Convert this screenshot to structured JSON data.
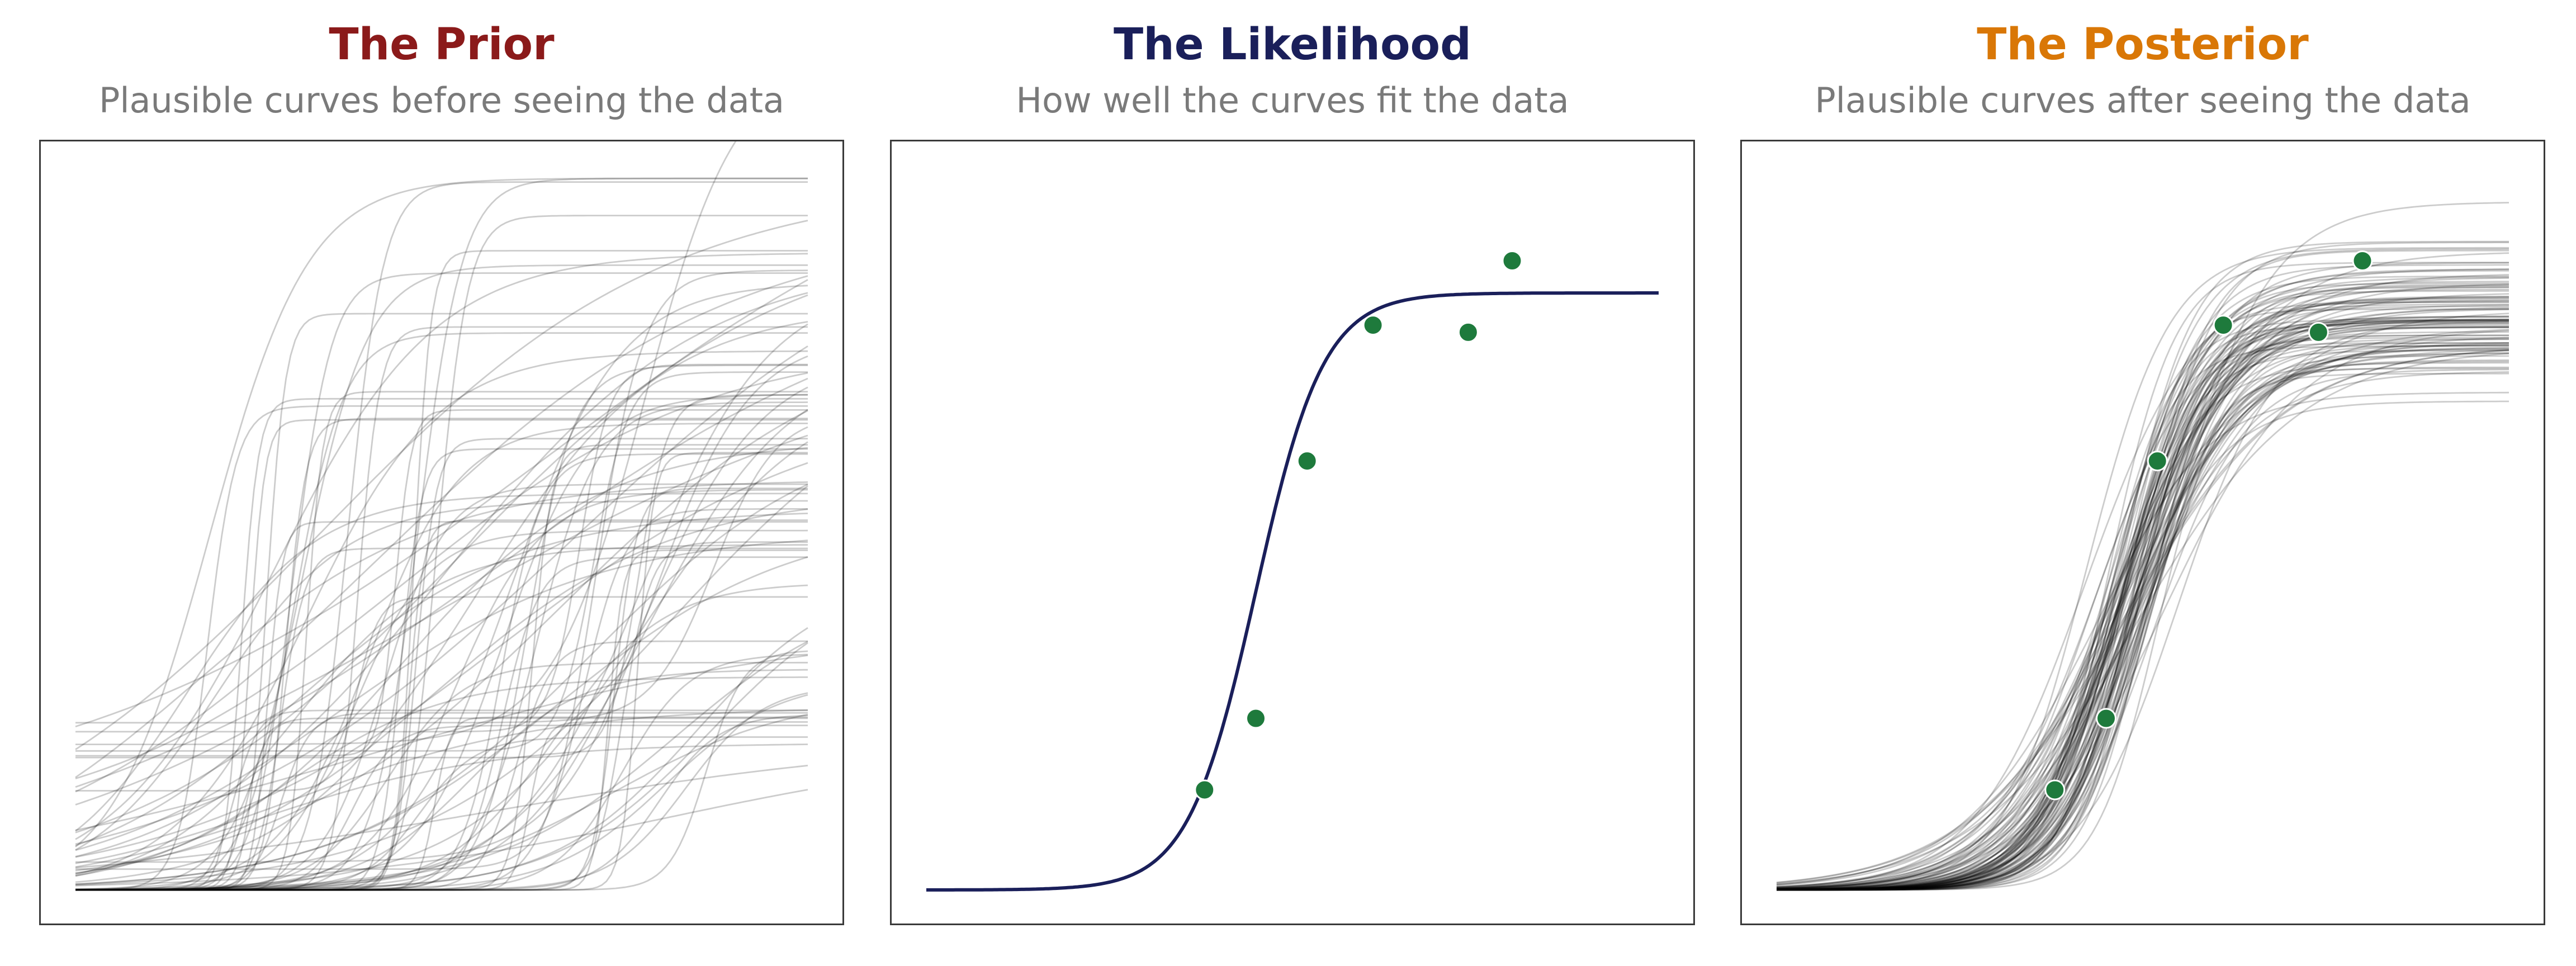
{
  "colors": {
    "prior": "#8b1a1a",
    "likelihood": "#1a1f5a",
    "posterior": "#d97706",
    "subtitle": "#7a7a7a",
    "curve": "#000000",
    "point": "#1e7a3c",
    "point_edge": "#ffffff"
  },
  "panels": [
    {
      "title": "The Prior",
      "subtitle": "Plausible curves before seeing the data"
    },
    {
      "title": "The Likelihood",
      "subtitle": "How well the curves fit the data"
    },
    {
      "title": "The Posterior",
      "subtitle": "Plausible curves after seeing the data"
    }
  ],
  "chart_data": [
    {
      "type": "line",
      "title": "The Prior",
      "subtitle": "Plausible curves before seeing the data",
      "xlabel": "",
      "ylabel": "",
      "xlim": [
        0,
        10
      ],
      "ylim": [
        0,
        1
      ],
      "grid": false,
      "series_description": "~100 random logistic curves, wide spread",
      "curve_count": 100
    },
    {
      "type": "line",
      "title": "The Likelihood",
      "subtitle": "How well the curves fit the data",
      "xlabel": "",
      "ylabel": "",
      "xlim": [
        0,
        10
      ],
      "ylim": [
        0,
        1
      ],
      "grid": false,
      "fit": {
        "L": 0.835,
        "k": 2.16,
        "x0": 4.5,
        "base": 0.0
      },
      "points": [
        {
          "x": 3.8,
          "y": 0.14
        },
        {
          "x": 4.5,
          "y": 0.24
        },
        {
          "x": 5.2,
          "y": 0.6
        },
        {
          "x": 6.1,
          "y": 0.79
        },
        {
          "x": 7.4,
          "y": 0.78
        },
        {
          "x": 8.0,
          "y": 0.88
        }
      ]
    },
    {
      "type": "line",
      "title": "The Posterior",
      "subtitle": "Plausible curves after seeing the data",
      "xlabel": "",
      "ylabel": "",
      "xlim": [
        0,
        10
      ],
      "ylim": [
        0,
        1
      ],
      "grid": false,
      "series_description": "~100 logistic curves concentrated around the data",
      "curve_count": 100,
      "points": [
        {
          "x": 3.8,
          "y": 0.14
        },
        {
          "x": 4.5,
          "y": 0.24
        },
        {
          "x": 5.2,
          "y": 0.6
        },
        {
          "x": 6.1,
          "y": 0.79
        },
        {
          "x": 7.4,
          "y": 0.78
        },
        {
          "x": 8.0,
          "y": 0.88
        }
      ]
    }
  ]
}
